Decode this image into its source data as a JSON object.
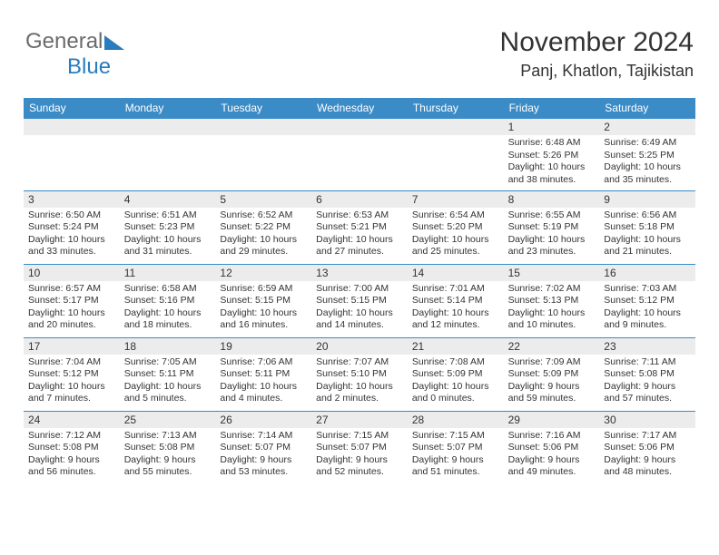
{
  "branding": {
    "logo_text_1": "General",
    "logo_text_2": "Blue",
    "logo_color_gray": "#6b6b6b",
    "logo_color_blue": "#2b7bbf",
    "triangle_fill": "#2b7bbf"
  },
  "header": {
    "month_title": "November 2024",
    "location": "Panj, Khatlon, Tajikistan"
  },
  "colors": {
    "header_bg": "#3b8bc7",
    "header_text": "#ffffff",
    "daynum_bg": "#ececec",
    "cell_border": "#3b8bc7",
    "text": "#333333",
    "background": "#ffffff"
  },
  "day_names": [
    "Sunday",
    "Monday",
    "Tuesday",
    "Wednesday",
    "Thursday",
    "Friday",
    "Saturday"
  ],
  "weeks": [
    [
      {
        "n": "",
        "sr": "",
        "ss": "",
        "dl": ""
      },
      {
        "n": "",
        "sr": "",
        "ss": "",
        "dl": ""
      },
      {
        "n": "",
        "sr": "",
        "ss": "",
        "dl": ""
      },
      {
        "n": "",
        "sr": "",
        "ss": "",
        "dl": ""
      },
      {
        "n": "",
        "sr": "",
        "ss": "",
        "dl": ""
      },
      {
        "n": "1",
        "sr": "Sunrise: 6:48 AM",
        "ss": "Sunset: 5:26 PM",
        "dl": "Daylight: 10 hours and 38 minutes."
      },
      {
        "n": "2",
        "sr": "Sunrise: 6:49 AM",
        "ss": "Sunset: 5:25 PM",
        "dl": "Daylight: 10 hours and 35 minutes."
      }
    ],
    [
      {
        "n": "3",
        "sr": "Sunrise: 6:50 AM",
        "ss": "Sunset: 5:24 PM",
        "dl": "Daylight: 10 hours and 33 minutes."
      },
      {
        "n": "4",
        "sr": "Sunrise: 6:51 AM",
        "ss": "Sunset: 5:23 PM",
        "dl": "Daylight: 10 hours and 31 minutes."
      },
      {
        "n": "5",
        "sr": "Sunrise: 6:52 AM",
        "ss": "Sunset: 5:22 PM",
        "dl": "Daylight: 10 hours and 29 minutes."
      },
      {
        "n": "6",
        "sr": "Sunrise: 6:53 AM",
        "ss": "Sunset: 5:21 PM",
        "dl": "Daylight: 10 hours and 27 minutes."
      },
      {
        "n": "7",
        "sr": "Sunrise: 6:54 AM",
        "ss": "Sunset: 5:20 PM",
        "dl": "Daylight: 10 hours and 25 minutes."
      },
      {
        "n": "8",
        "sr": "Sunrise: 6:55 AM",
        "ss": "Sunset: 5:19 PM",
        "dl": "Daylight: 10 hours and 23 minutes."
      },
      {
        "n": "9",
        "sr": "Sunrise: 6:56 AM",
        "ss": "Sunset: 5:18 PM",
        "dl": "Daylight: 10 hours and 21 minutes."
      }
    ],
    [
      {
        "n": "10",
        "sr": "Sunrise: 6:57 AM",
        "ss": "Sunset: 5:17 PM",
        "dl": "Daylight: 10 hours and 20 minutes."
      },
      {
        "n": "11",
        "sr": "Sunrise: 6:58 AM",
        "ss": "Sunset: 5:16 PM",
        "dl": "Daylight: 10 hours and 18 minutes."
      },
      {
        "n": "12",
        "sr": "Sunrise: 6:59 AM",
        "ss": "Sunset: 5:15 PM",
        "dl": "Daylight: 10 hours and 16 minutes."
      },
      {
        "n": "13",
        "sr": "Sunrise: 7:00 AM",
        "ss": "Sunset: 5:15 PM",
        "dl": "Daylight: 10 hours and 14 minutes."
      },
      {
        "n": "14",
        "sr": "Sunrise: 7:01 AM",
        "ss": "Sunset: 5:14 PM",
        "dl": "Daylight: 10 hours and 12 minutes."
      },
      {
        "n": "15",
        "sr": "Sunrise: 7:02 AM",
        "ss": "Sunset: 5:13 PM",
        "dl": "Daylight: 10 hours and 10 minutes."
      },
      {
        "n": "16",
        "sr": "Sunrise: 7:03 AM",
        "ss": "Sunset: 5:12 PM",
        "dl": "Daylight: 10 hours and 9 minutes."
      }
    ],
    [
      {
        "n": "17",
        "sr": "Sunrise: 7:04 AM",
        "ss": "Sunset: 5:12 PM",
        "dl": "Daylight: 10 hours and 7 minutes."
      },
      {
        "n": "18",
        "sr": "Sunrise: 7:05 AM",
        "ss": "Sunset: 5:11 PM",
        "dl": "Daylight: 10 hours and 5 minutes."
      },
      {
        "n": "19",
        "sr": "Sunrise: 7:06 AM",
        "ss": "Sunset: 5:11 PM",
        "dl": "Daylight: 10 hours and 4 minutes."
      },
      {
        "n": "20",
        "sr": "Sunrise: 7:07 AM",
        "ss": "Sunset: 5:10 PM",
        "dl": "Daylight: 10 hours and 2 minutes."
      },
      {
        "n": "21",
        "sr": "Sunrise: 7:08 AM",
        "ss": "Sunset: 5:09 PM",
        "dl": "Daylight: 10 hours and 0 minutes."
      },
      {
        "n": "22",
        "sr": "Sunrise: 7:09 AM",
        "ss": "Sunset: 5:09 PM",
        "dl": "Daylight: 9 hours and 59 minutes."
      },
      {
        "n": "23",
        "sr": "Sunrise: 7:11 AM",
        "ss": "Sunset: 5:08 PM",
        "dl": "Daylight: 9 hours and 57 minutes."
      }
    ],
    [
      {
        "n": "24",
        "sr": "Sunrise: 7:12 AM",
        "ss": "Sunset: 5:08 PM",
        "dl": "Daylight: 9 hours and 56 minutes."
      },
      {
        "n": "25",
        "sr": "Sunrise: 7:13 AM",
        "ss": "Sunset: 5:08 PM",
        "dl": "Daylight: 9 hours and 55 minutes."
      },
      {
        "n": "26",
        "sr": "Sunrise: 7:14 AM",
        "ss": "Sunset: 5:07 PM",
        "dl": "Daylight: 9 hours and 53 minutes."
      },
      {
        "n": "27",
        "sr": "Sunrise: 7:15 AM",
        "ss": "Sunset: 5:07 PM",
        "dl": "Daylight: 9 hours and 52 minutes."
      },
      {
        "n": "28",
        "sr": "Sunrise: 7:15 AM",
        "ss": "Sunset: 5:07 PM",
        "dl": "Daylight: 9 hours and 51 minutes."
      },
      {
        "n": "29",
        "sr": "Sunrise: 7:16 AM",
        "ss": "Sunset: 5:06 PM",
        "dl": "Daylight: 9 hours and 49 minutes."
      },
      {
        "n": "30",
        "sr": "Sunrise: 7:17 AM",
        "ss": "Sunset: 5:06 PM",
        "dl": "Daylight: 9 hours and 48 minutes."
      }
    ]
  ]
}
